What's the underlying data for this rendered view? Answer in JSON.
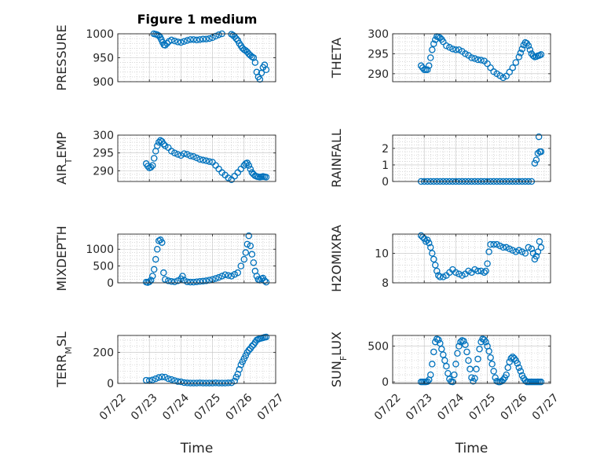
{
  "figure": {
    "title": "Figure 1 medium"
  },
  "colors": {
    "marker": "#0072BD",
    "axis": "#262626",
    "grid": "#c0c0c0"
  },
  "chart_data": [
    {
      "type": "scatter",
      "ylabel": "PRESSURE",
      "ylim": [
        900,
        1000
      ],
      "yticks": [
        "900",
        "950",
        "1000"
      ],
      "ytick_values": [
        900,
        950,
        1000
      ],
      "xlim": [
        0,
        5
      ],
      "xticklabels": [
        "07/22",
        "07/23",
        "07/24",
        "07/25",
        "07/26",
        "07/27"
      ],
      "xlabel": "",
      "x": [
        0.9,
        0.98,
        1.06,
        1.14,
        1.2,
        1.25,
        1.3,
        1.34,
        1.38,
        1.42,
        1.46,
        1.5,
        1.56,
        1.62,
        1.7,
        1.8,
        1.9,
        2.0,
        2.1,
        2.2,
        2.3,
        2.4,
        2.5,
        2.6,
        2.7,
        2.8,
        2.9,
        3.0,
        3.1,
        3.2,
        3.3,
        3.4,
        3.5,
        3.55,
        3.6,
        3.65,
        3.7,
        3.75,
        3.8,
        3.85,
        3.9,
        3.95,
        4.0,
        4.05,
        4.1,
        4.15,
        4.2,
        4.25,
        4.3,
        4.35,
        4.4,
        4.45,
        4.5,
        4.55,
        4.6,
        4.65,
        4.7
      ],
      "y": [
        1001,
        1001,
        1001,
        1000,
        999,
        998,
        996,
        993,
        988,
        982,
        977,
        976,
        980,
        984,
        987,
        985,
        983,
        982,
        984,
        986,
        988,
        988,
        987,
        988,
        989,
        989,
        990,
        992,
        995,
        998,
        1000,
        1001,
        1002,
        1001,
        999,
        997,
        994,
        990,
        986,
        980,
        975,
        970,
        967,
        965,
        962,
        958,
        955,
        952,
        950,
        940,
        920,
        910,
        905,
        918,
        930,
        935,
        925
      ]
    },
    {
      "type": "scatter",
      "ylabel": "THETA",
      "ylim": [
        288,
        300
      ],
      "yticks": [
        "290",
        "295",
        "300"
      ],
      "ytick_values": [
        290,
        295,
        300
      ],
      "xlim": [
        0,
        5
      ],
      "xticklabels": [
        "07/22",
        "07/23",
        "07/24",
        "07/25",
        "07/26",
        "07/27"
      ],
      "xlabel": "",
      "x": [
        0.9,
        0.95,
        1.0,
        1.05,
        1.1,
        1.15,
        1.2,
        1.25,
        1.3,
        1.35,
        1.4,
        1.45,
        1.5,
        1.55,
        1.6,
        1.7,
        1.8,
        1.9,
        2.0,
        2.1,
        2.2,
        2.3,
        2.4,
        2.5,
        2.6,
        2.7,
        2.8,
        2.9,
        3.0,
        3.1,
        3.2,
        3.3,
        3.4,
        3.5,
        3.6,
        3.7,
        3.8,
        3.9,
        4.0,
        4.05,
        4.1,
        4.15,
        4.2,
        4.25,
        4.3,
        4.35,
        4.4,
        4.45,
        4.5,
        4.55,
        4.6,
        4.65,
        4.7
      ],
      "y": [
        292,
        291.5,
        291,
        291,
        291,
        292,
        294,
        296,
        297.5,
        298.5,
        299.3,
        299.2,
        299,
        298.6,
        298,
        297,
        296.6,
        296.2,
        296,
        296,
        295.6,
        295,
        294.6,
        294,
        293.8,
        293.5,
        293.4,
        293.2,
        292.5,
        291.5,
        290.5,
        290,
        289.5,
        289,
        289.4,
        290.4,
        291.5,
        292.8,
        294.2,
        295.2,
        296.2,
        297.2,
        297.8,
        297.6,
        297,
        296,
        295,
        294.5,
        294.2,
        294.3,
        294.5,
        294.6,
        294.8
      ]
    },
    {
      "type": "scatter",
      "ylabel": "AIR_TEMP",
      "ylim": [
        287,
        300
      ],
      "yticks": [
        "290",
        "295",
        "300"
      ],
      "ytick_values": [
        290,
        295,
        300
      ],
      "xlim": [
        0,
        5
      ],
      "xticklabels": [
        "07/22",
        "07/23",
        "07/24",
        "07/25",
        "07/26",
        "07/27"
      ],
      "xlabel": "",
      "x": [
        0.9,
        0.95,
        1.0,
        1.05,
        1.1,
        1.15,
        1.2,
        1.25,
        1.3,
        1.35,
        1.4,
        1.45,
        1.5,
        1.6,
        1.7,
        1.8,
        1.9,
        2.0,
        2.1,
        2.2,
        2.3,
        2.4,
        2.5,
        2.6,
        2.7,
        2.8,
        2.9,
        3.0,
        3.1,
        3.2,
        3.3,
        3.4,
        3.5,
        3.6,
        3.7,
        3.8,
        3.9,
        4.0,
        4.05,
        4.1,
        4.15,
        4.2,
        4.25,
        4.3,
        4.35,
        4.4,
        4.45,
        4.5,
        4.55,
        4.6,
        4.65,
        4.7
      ],
      "y": [
        292,
        291.3,
        290.8,
        291,
        291.5,
        293.5,
        295.5,
        297,
        298,
        298.5,
        298.2,
        297.5,
        297,
        296.5,
        295.5,
        295,
        294.6,
        294.3,
        294.8,
        294.6,
        294.2,
        294,
        293.6,
        293.2,
        293,
        292.8,
        292.6,
        292.4,
        291.5,
        290.5,
        289.5,
        288.8,
        288,
        287.5,
        288.5,
        289.5,
        290.5,
        291.5,
        292,
        292.2,
        291.5,
        290.5,
        289.5,
        289,
        288.6,
        288.4,
        288.3,
        288.2,
        288.3,
        288.4,
        288.3,
        288.2
      ]
    },
    {
      "type": "scatter",
      "ylabel": "RAINFALL",
      "ylim": [
        0,
        2.8
      ],
      "yticks": [
        "0",
        "1",
        "2"
      ],
      "ytick_values": [
        0,
        1,
        2
      ],
      "xlim": [
        0,
        5
      ],
      "xticklabels": [
        "07/22",
        "07/23",
        "07/24",
        "07/25",
        "07/26",
        "07/27"
      ],
      "xlabel": "",
      "x": [
        0.9,
        1.0,
        1.1,
        1.2,
        1.3,
        1.4,
        1.5,
        1.6,
        1.7,
        1.8,
        1.9,
        2.0,
        2.1,
        2.2,
        2.3,
        2.4,
        2.5,
        2.6,
        2.7,
        2.8,
        2.9,
        3.0,
        3.1,
        3.2,
        3.3,
        3.4,
        3.5,
        3.6,
        3.7,
        3.8,
        3.9,
        4.0,
        4.1,
        4.2,
        4.3,
        4.4,
        4.5,
        4.55,
        4.6,
        4.63,
        4.66,
        4.7
      ],
      "y": [
        0,
        0,
        0,
        0,
        0,
        0,
        0,
        0,
        0,
        0,
        0,
        0,
        0,
        0,
        0,
        0,
        0,
        0,
        0,
        0,
        0,
        0,
        0,
        0,
        0,
        0,
        0,
        0,
        0,
        0,
        0,
        0,
        0,
        0,
        0,
        0,
        1.1,
        1.3,
        1.7,
        2.7,
        1.8,
        1.8
      ]
    },
    {
      "type": "scatter",
      "ylabel": "MIXDEPTH",
      "ylim": [
        0,
        1450
      ],
      "yticks": [
        "0",
        "500",
        "1000"
      ],
      "ytick_values": [
        0,
        500,
        1000
      ],
      "xlim": [
        0,
        5
      ],
      "xticklabels": [
        "07/22",
        "07/23",
        "07/24",
        "07/25",
        "07/26",
        "07/27"
      ],
      "xlabel": "",
      "x": [
        0.9,
        0.95,
        1.0,
        1.05,
        1.1,
        1.15,
        1.2,
        1.25,
        1.3,
        1.35,
        1.4,
        1.45,
        1.5,
        1.6,
        1.7,
        1.8,
        1.9,
        2.0,
        2.05,
        2.1,
        2.2,
        2.3,
        2.4,
        2.5,
        2.6,
        2.7,
        2.8,
        2.9,
        3.0,
        3.1,
        3.2,
        3.3,
        3.4,
        3.5,
        3.6,
        3.7,
        3.8,
        3.9,
        4.0,
        4.05,
        4.1,
        4.15,
        4.2,
        4.25,
        4.3,
        4.35,
        4.4,
        4.45,
        4.5,
        4.55,
        4.6,
        4.65,
        4.7
      ],
      "y": [
        20,
        10,
        30,
        80,
        200,
        400,
        700,
        1000,
        1250,
        1280,
        1200,
        300,
        100,
        60,
        40,
        30,
        60,
        120,
        200,
        80,
        30,
        20,
        20,
        30,
        40,
        50,
        60,
        80,
        100,
        130,
        160,
        200,
        240,
        220,
        200,
        250,
        300,
        500,
        700,
        900,
        1150,
        1400,
        1100,
        850,
        600,
        350,
        200,
        100,
        80,
        120,
        140,
        60,
        20
      ]
    },
    {
      "type": "scatter",
      "ylabel": "H2OMIXRA",
      "ylim": [
        8,
        11.3
      ],
      "yticks": [
        "8",
        "10"
      ],
      "ytick_values": [
        8,
        10
      ],
      "xlim": [
        0,
        5
      ],
      "xticklabels": [
        "07/22",
        "07/23",
        "07/24",
        "07/25",
        "07/26",
        "07/27"
      ],
      "xlabel": "",
      "x": [
        0.9,
        0.95,
        1.0,
        1.05,
        1.1,
        1.15,
        1.2,
        1.25,
        1.3,
        1.35,
        1.4,
        1.45,
        1.5,
        1.6,
        1.7,
        1.8,
        1.9,
        2.0,
        2.1,
        2.2,
        2.3,
        2.4,
        2.5,
        2.6,
        2.7,
        2.8,
        2.9,
        2.95,
        3.0,
        3.05,
        3.1,
        3.2,
        3.3,
        3.4,
        3.5,
        3.6,
        3.7,
        3.8,
        3.9,
        4.0,
        4.1,
        4.2,
        4.3,
        4.4,
        4.45,
        4.5,
        4.55,
        4.6,
        4.65,
        4.7
      ],
      "y": [
        11.2,
        11.1,
        11.0,
        10.8,
        10.9,
        10.7,
        10.4,
        10.0,
        9.6,
        9.2,
        8.8,
        8.5,
        8.4,
        8.4,
        8.5,
        8.7,
        8.9,
        8.7,
        8.6,
        8.5,
        8.6,
        8.8,
        8.7,
        8.9,
        8.8,
        8.8,
        8.7,
        8.8,
        9.3,
        10.1,
        10.6,
        10.6,
        10.6,
        10.5,
        10.4,
        10.4,
        10.3,
        10.2,
        10.1,
        10.2,
        10.1,
        10.0,
        10.4,
        10.3,
        10.0,
        9.6,
        9.8,
        10.1,
        10.8,
        10.4
      ]
    },
    {
      "type": "scatter",
      "ylabel": "TERR_MSL",
      "ylim": [
        0,
        310
      ],
      "yticks": [
        "0",
        "200"
      ],
      "ytick_values": [
        0,
        200
      ],
      "xlim": [
        0,
        5
      ],
      "xticklabels": [
        "07/22",
        "07/23",
        "07/24",
        "07/25",
        "07/26",
        "07/27"
      ],
      "xlabel": "Time",
      "x": [
        0.9,
        1.0,
        1.1,
        1.2,
        1.3,
        1.4,
        1.5,
        1.6,
        1.7,
        1.8,
        1.9,
        2.0,
        2.1,
        2.2,
        2.3,
        2.4,
        2.5,
        2.6,
        2.7,
        2.8,
        2.9,
        3.0,
        3.1,
        3.2,
        3.3,
        3.4,
        3.5,
        3.6,
        3.7,
        3.75,
        3.8,
        3.85,
        3.9,
        3.95,
        4.0,
        4.05,
        4.1,
        4.15,
        4.2,
        4.25,
        4.3,
        4.35,
        4.4,
        4.45,
        4.5,
        4.55,
        4.6,
        4.65,
        4.7
      ],
      "y": [
        20,
        18,
        22,
        30,
        38,
        42,
        40,
        30,
        25,
        18,
        12,
        10,
        5,
        3,
        2,
        2,
        2,
        3,
        2,
        2,
        2,
        2,
        3,
        2,
        2,
        2,
        3,
        4,
        15,
        40,
        60,
        90,
        120,
        140,
        160,
        180,
        200,
        215,
        225,
        240,
        250,
        265,
        280,
        285,
        290,
        292,
        295,
        298,
        300
      ]
    },
    {
      "type": "scatter",
      "ylabel": "SUN_FLUX",
      "ylim": [
        -20,
        650
      ],
      "yticks": [
        "0",
        "500"
      ],
      "ytick_values": [
        0,
        500
      ],
      "xlim": [
        0,
        5
      ],
      "xticklabels": [
        "07/22",
        "07/23",
        "07/24",
        "07/25",
        "07/26",
        "07/27"
      ],
      "xlabel": "Time",
      "x": [
        0.9,
        0.95,
        1.0,
        1.05,
        1.1,
        1.15,
        1.2,
        1.25,
        1.3,
        1.35,
        1.4,
        1.45,
        1.5,
        1.55,
        1.6,
        1.65,
        1.7,
        1.75,
        1.8,
        1.85,
        1.9,
        1.95,
        2.0,
        2.05,
        2.1,
        2.15,
        2.2,
        2.25,
        2.3,
        2.35,
        2.4,
        2.45,
        2.5,
        2.55,
        2.6,
        2.65,
        2.7,
        2.75,
        2.8,
        2.85,
        2.9,
        2.95,
        3.0,
        3.05,
        3.1,
        3.15,
        3.2,
        3.25,
        3.3,
        3.35,
        3.4,
        3.45,
        3.5,
        3.55,
        3.6,
        3.65,
        3.7,
        3.75,
        3.8,
        3.85,
        3.9,
        3.95,
        4.0,
        4.05,
        4.1,
        4.15,
        4.2,
        4.25,
        4.3,
        4.35,
        4.4,
        4.45,
        4.5,
        4.55,
        4.6,
        4.65,
        4.7
      ],
      "y": [
        0,
        0,
        0,
        0,
        5,
        30,
        100,
        250,
        420,
        560,
        600,
        590,
        540,
        460,
        380,
        300,
        220,
        120,
        40,
        5,
        0,
        100,
        250,
        400,
        500,
        560,
        580,
        570,
        520,
        420,
        300,
        180,
        60,
        10,
        50,
        180,
        320,
        460,
        560,
        600,
        590,
        560,
        500,
        430,
        340,
        250,
        150,
        60,
        10,
        0,
        0,
        10,
        30,
        60,
        100,
        200,
        280,
        330,
        350,
        330,
        300,
        260,
        200,
        150,
        90,
        50,
        20,
        0,
        0,
        0,
        0,
        0,
        0,
        0,
        0,
        0,
        0
      ]
    }
  ]
}
